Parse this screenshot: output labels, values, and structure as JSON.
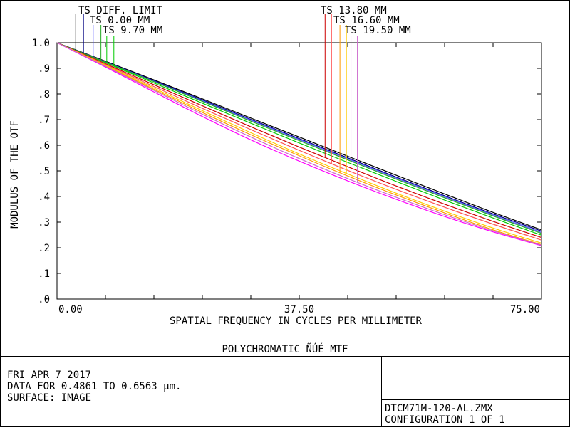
{
  "chart_data": {
    "type": "line",
    "xlabel": "SPATIAL FREQUENCY IN CYCLES PER MILLIMETER",
    "ylabel": "MODULUS OF THE OTF",
    "xlim": [
      0,
      75
    ],
    "ylim": [
      0,
      1.0
    ],
    "x_ticks": [
      "0.00",
      "37.50",
      "75.00"
    ],
    "y_ticks": [
      ".0",
      ".1",
      ".2",
      ".3",
      ".4",
      ".5",
      ".6",
      ".7",
      ".8",
      ".9",
      "1.0"
    ],
    "grid": true,
    "x": [
      0,
      7.5,
      15,
      22.5,
      30,
      37.5,
      45,
      52.5,
      60,
      67.5,
      75
    ],
    "series": [
      {
        "name": "TS DIFF. LIMIT",
        "color": "#000000",
        "values": [
          1.0,
          0.928,
          0.855,
          0.781,
          0.706,
          0.632,
          0.557,
          0.483,
          0.41,
          0.338,
          0.27
        ]
      },
      {
        "name": "TS 0.00 MM",
        "color": "#000080",
        "values": [
          1.0,
          0.926,
          0.852,
          0.777,
          0.701,
          0.626,
          0.551,
          0.476,
          0.403,
          0.332,
          0.265
        ]
      },
      {
        "name": "TS 0.00 MM",
        "color": "#5555ff",
        "values": [
          1.0,
          0.925,
          0.85,
          0.774,
          0.698,
          0.622,
          0.547,
          0.472,
          0.399,
          0.328,
          0.26
        ]
      },
      {
        "name": "TS 9.70 MM",
        "color": "#00cc00",
        "values": [
          1.0,
          0.922,
          0.843,
          0.764,
          0.686,
          0.609,
          0.533,
          0.459,
          0.386,
          0.316,
          0.249
        ]
      },
      {
        "name": "TS 9.70 MM",
        "color": "#22aa22",
        "values": [
          1.0,
          0.924,
          0.848,
          0.771,
          0.694,
          0.618,
          0.543,
          0.468,
          0.395,
          0.324,
          0.256
        ]
      },
      {
        "name": "TS 13.80 MM",
        "color": "#cc0000",
        "values": [
          1.0,
          0.918,
          0.836,
          0.754,
          0.672,
          0.593,
          0.516,
          0.441,
          0.37,
          0.303,
          0.24
        ]
      },
      {
        "name": "TS 13.80 MM",
        "color": "#ff5555",
        "values": [
          1.0,
          0.915,
          0.829,
          0.744,
          0.661,
          0.58,
          0.502,
          0.428,
          0.358,
          0.292,
          0.23
        ]
      },
      {
        "name": "TS 16.60 MM",
        "color": "#ff9900",
        "values": [
          1.0,
          0.91,
          0.818,
          0.728,
          0.641,
          0.559,
          0.48,
          0.406,
          0.336,
          0.27,
          0.212
        ]
      },
      {
        "name": "TS 16.60 MM",
        "color": "#ffcc00",
        "values": [
          1.0,
          0.912,
          0.823,
          0.735,
          0.649,
          0.566,
          0.488,
          0.413,
          0.343,
          0.277,
          0.218
        ]
      },
      {
        "name": "TS 19.50 MM",
        "color": "#ff00ff",
        "values": [
          1.0,
          0.905,
          0.808,
          0.712,
          0.621,
          0.538,
          0.461,
          0.389,
          0.322,
          0.262,
          0.208
        ]
      },
      {
        "name": "TS 19.50 MM",
        "color": "#cc66cc",
        "values": [
          1.0,
          0.908,
          0.814,
          0.721,
          0.632,
          0.548,
          0.47,
          0.397,
          0.329,
          0.266,
          0.21
        ]
      }
    ]
  },
  "legend_labels": [
    "TS DIFF. LIMIT",
    "TS 0.00 MM",
    "TS 9.70 MM",
    "TS 13.80 MM",
    "TS 16.60 MM",
    "TS 19.50 MM"
  ],
  "footer": {
    "title": "POLYCHROMATIC ÑÚÉ  MTF",
    "date": "FRI APR 7 2017",
    "data_range": "DATA FOR 0.4861 TO 0.6563 μm.",
    "surface": "SURFACE: IMAGE",
    "file": "DTCM71M-120-AL.ZMX",
    "configuration": "CONFIGURATION 1 OF 1"
  }
}
